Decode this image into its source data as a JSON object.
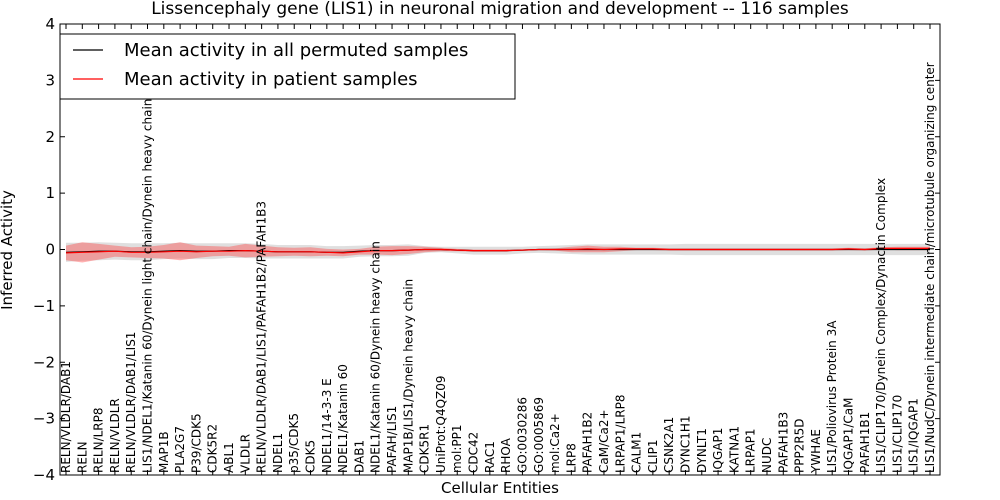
{
  "chart_data": {
    "type": "line",
    "title": "Lissencephaly gene (LIS1) in neuronal migration and development -- 116 samples",
    "xlabel": "Cellular Entities",
    "ylabel": "Inferred Activity",
    "ylim": [
      -4,
      4
    ],
    "yticks": [
      -4,
      -3,
      -2,
      -1,
      0,
      1,
      2,
      3,
      4
    ],
    "legend": {
      "position": "top-left",
      "entries": [
        {
          "label": "Mean activity in all permuted samples",
          "color": "#000000"
        },
        {
          "label": "Mean activity in patient samples",
          "color": "#ff0000"
        }
      ]
    },
    "categories": [
      "RELN/VLDLR/DAB1",
      "RELN",
      "RELN/LRP8",
      "RELN/VLDLR",
      "RELN/VLDLR/DAB1/LIS1",
      "LIS1/NDEL1/Katanin 60/Dynein light chain/Dynein heavy chain",
      "MAP1B",
      "PLA2G7",
      "P39/CDK5",
      "CDK5R2",
      "ABL1",
      "VLDLR",
      "RELN/VLDLR/DAB1/LIS1/PAFAH1B2/PAFAH1B3",
      "NDEL1",
      "p35/CDK5",
      "CDK5",
      "NDEL1/14-3-3 E",
      "NDEL1/Katanin 60",
      "DAB1",
      "NDEL1/Katanin 60/Dynein heavy chain",
      "PAFAH/LIS1",
      "MAP1B/LIS1/Dynein heavy chain",
      "CDK5R1",
      "UniProt:Q4QZ09",
      "mol:PP1",
      "CDC42",
      "RAC1",
      "RHOA",
      "GO:0030286",
      "GO:0005869",
      "mol:Ca2+",
      "LRP8",
      "PAFAH1B2",
      "CaM/Ca2+",
      "LRPAP1/LRP8",
      "CALM1",
      "CLIP1",
      "CSNK2A1",
      "DYNC1H1",
      "DYNLT1",
      "IQGAP1",
      "KATNA1",
      "LRPAP1",
      "NUDC",
      "PAFAH1B3",
      "PPP2R5D",
      "YWHAE",
      "LIS1/Poliovirus Protein 3A",
      "IQGAP1/CaM",
      "PAFAH1B1",
      "LIS1/CLIP170/Dynein Complex/Dynactin Complex",
      "LIS1/CLIP170",
      "LIS1/IQGAP1",
      "LIS1/NudC/Dynein intermediate chain/microtubule organizing center"
    ],
    "series": [
      {
        "name": "Mean activity in all permuted samples",
        "color": "#000000",
        "values": [
          -0.05,
          -0.04,
          -0.03,
          -0.03,
          -0.04,
          -0.04,
          -0.03,
          -0.02,
          -0.03,
          -0.03,
          -0.02,
          -0.02,
          -0.03,
          -0.04,
          -0.04,
          -0.04,
          -0.05,
          -0.05,
          -0.03,
          -0.02,
          -0.02,
          -0.01,
          0.0,
          0.0,
          -0.01,
          -0.02,
          -0.02,
          -0.02,
          -0.01,
          0.0,
          0.0,
          0.0,
          0.0,
          0.0,
          0.0,
          0.0,
          0.0,
          0.0,
          0.0,
          0.0,
          0.0,
          0.0,
          0.0,
          0.0,
          0.0,
          0.0,
          0.0,
          0.0,
          0.0,
          0.0,
          0.0,
          0.0,
          0.0,
          0.0
        ],
        "band": [
          0.17,
          0.16,
          0.16,
          0.15,
          0.15,
          0.15,
          0.14,
          0.14,
          0.14,
          0.14,
          0.13,
          0.13,
          0.13,
          0.12,
          0.12,
          0.12,
          0.11,
          0.11,
          0.1,
          0.1,
          0.1,
          0.1,
          0.06,
          0.05,
          0.06,
          0.07,
          0.07,
          0.07,
          0.06,
          0.06,
          0.07,
          0.08,
          0.09,
          0.09,
          0.09,
          0.09,
          0.09,
          0.09,
          0.1,
          0.1,
          0.1,
          0.1,
          0.1,
          0.1,
          0.1,
          0.1,
          0.1,
          0.1,
          0.1,
          0.1,
          0.1,
          0.1,
          0.1,
          0.1
        ]
      },
      {
        "name": "Mean activity in patient samples",
        "color": "#ff0000",
        "values": [
          -0.06,
          -0.05,
          -0.04,
          -0.03,
          -0.05,
          -0.05,
          -0.04,
          -0.03,
          -0.04,
          -0.03,
          -0.03,
          -0.02,
          -0.03,
          -0.04,
          -0.04,
          -0.04,
          -0.05,
          -0.06,
          -0.04,
          -0.02,
          -0.02,
          -0.01,
          0.0,
          0.0,
          -0.01,
          -0.02,
          -0.02,
          -0.02,
          -0.01,
          0.0,
          0.0,
          0.0,
          0.01,
          0.0,
          0.01,
          0.01,
          0.01,
          0.0,
          0.0,
          0.0,
          0.0,
          0.0,
          0.0,
          0.0,
          0.0,
          0.0,
          0.0,
          0.0,
          0.01,
          0.0,
          0.02,
          0.02,
          0.02,
          0.02
        ],
        "band": [
          0.13,
          0.18,
          0.14,
          0.1,
          0.09,
          0.1,
          0.12,
          0.16,
          0.11,
          0.09,
          0.08,
          0.12,
          0.1,
          0.08,
          0.07,
          0.08,
          0.06,
          0.06,
          0.05,
          0.07,
          0.08,
          0.07,
          0.05,
          0.03,
          0.02,
          0.02,
          0.02,
          0.02,
          0.01,
          0.01,
          0.02,
          0.05,
          0.06,
          0.05,
          0.04,
          0.02,
          0.02,
          0.02,
          0.02,
          0.02,
          0.02,
          0.02,
          0.02,
          0.02,
          0.02,
          0.02,
          0.02,
          0.02,
          0.02,
          0.02,
          0.02,
          0.03,
          0.03,
          0.03
        ]
      }
    ]
  }
}
